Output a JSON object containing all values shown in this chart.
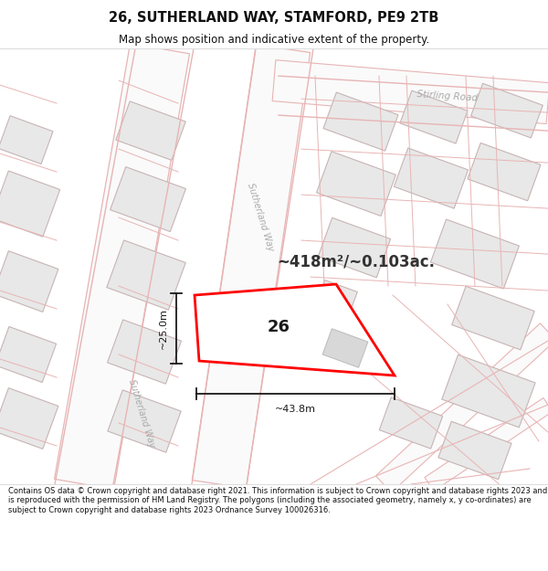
{
  "title": "26, SUTHERLAND WAY, STAMFORD, PE9 2TB",
  "subtitle": "Map shows position and indicative extent of the property.",
  "footer": "Contains OS data © Crown copyright and database right 2021. This information is subject to Crown copyright and database rights 2023 and is reproduced with the permission of HM Land Registry. The polygons (including the associated geometry, namely x, y co-ordinates) are subject to Crown copyright and database rights 2023 Ordnance Survey 100026316.",
  "map_bg": "#ffffff",
  "road_color": "#e8b4b4",
  "bldg_fill": "#e8e8e8",
  "bldg_edge": "#c8b4b4",
  "highlight_stroke": "#ff0000",
  "dim_color": "#1a1a1a",
  "area_text": "~418m²/~0.103ac.",
  "width_label": "~43.8m",
  "height_label": "~25.0m",
  "parcel_number": "26",
  "street_label_top": "Sutherland Way",
  "street_label_bot": "Sutherland Way",
  "street_label_right": "Stirling Road"
}
